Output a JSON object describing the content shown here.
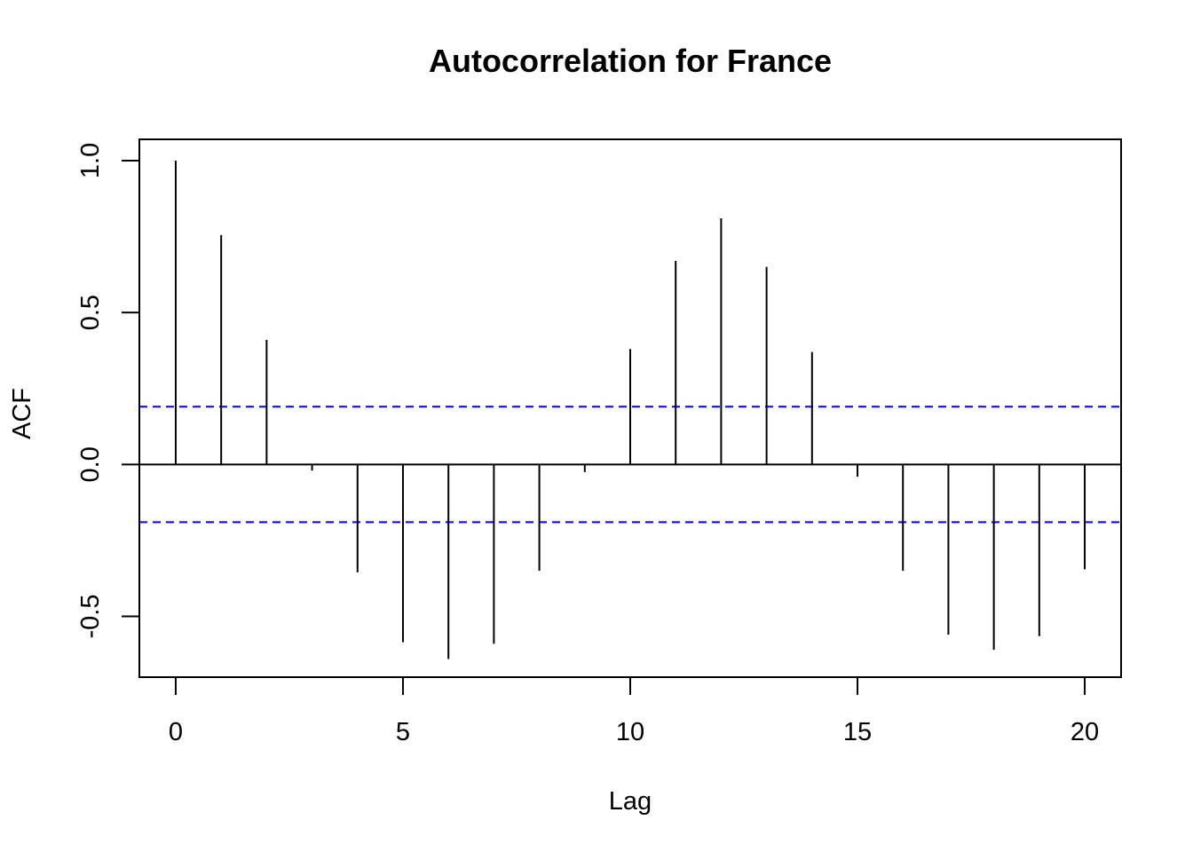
{
  "chart_data": {
    "type": "bar",
    "title": "Autocorrelation for France",
    "xlabel": "Lag",
    "ylabel": "ACF",
    "x": [
      0,
      1,
      2,
      3,
      4,
      5,
      6,
      7,
      8,
      9,
      10,
      11,
      12,
      13,
      14,
      15,
      16,
      17,
      18,
      19,
      20
    ],
    "values": [
      1.0,
      0.755,
      0.41,
      -0.02,
      -0.355,
      -0.585,
      -0.64,
      -0.59,
      -0.35,
      -0.025,
      0.38,
      0.67,
      0.81,
      0.65,
      0.37,
      -0.04,
      -0.35,
      -0.56,
      -0.61,
      -0.565,
      -0.345
    ],
    "confidence_bounds": [
      0.19,
      -0.19
    ],
    "xlim": [
      -0.8,
      20.8
    ],
    "ylim": [
      -0.7,
      1.07
    ],
    "xticks": [
      0,
      5,
      10,
      15,
      20
    ],
    "yticks": [
      -0.5,
      0.0,
      0.5,
      1.0
    ],
    "xtick_labels": [
      "0",
      "5",
      "10",
      "15",
      "20"
    ],
    "ytick_labels": [
      "-0.5",
      "0.0",
      "0.5",
      "1.0"
    ],
    "grid": false,
    "colors": {
      "bars": "#000000",
      "confidence": "#0000ff",
      "zero_line": "#000000"
    }
  }
}
